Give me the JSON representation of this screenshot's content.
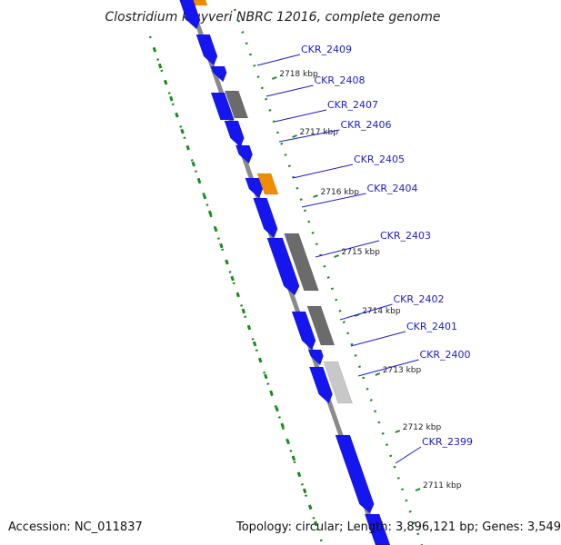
{
  "title": "Clostridium kluyveri NBRC 12016, complete genome",
  "footer": {
    "accession": "Accession: NC_011837",
    "summary": "Topology: circular; Length: 3,896,121 bp; Genes: 3,549"
  },
  "colors": {
    "cds_forward": "#1515f0",
    "pseudo_gray": "#6b6b6b",
    "light_gray": "#c8c8c8",
    "rna_orange": "#f08c00",
    "backbone": "#8a8a8a",
    "gc_ticks": "#1a8a1a",
    "label_blue": "#1c1cc8"
  },
  "scale_ticks": [
    {
      "label": "2718 kbp"
    },
    {
      "label": "2717 kbp"
    },
    {
      "label": "2716 kbp"
    },
    {
      "label": "2715 kbp"
    },
    {
      "label": "2714 kbp"
    },
    {
      "label": "2713 kbp"
    },
    {
      "label": "2712 kbp"
    },
    {
      "label": "2711 kbp"
    }
  ],
  "gene_labels": [
    "CKR_2409",
    "CKR_2408",
    "CKR_2407",
    "CKR_2406",
    "CKR_2405",
    "CKR_2404",
    "CKR_2403",
    "CKR_2402",
    "CKR_2401",
    "CKR_2400",
    "CKR_2399"
  ]
}
